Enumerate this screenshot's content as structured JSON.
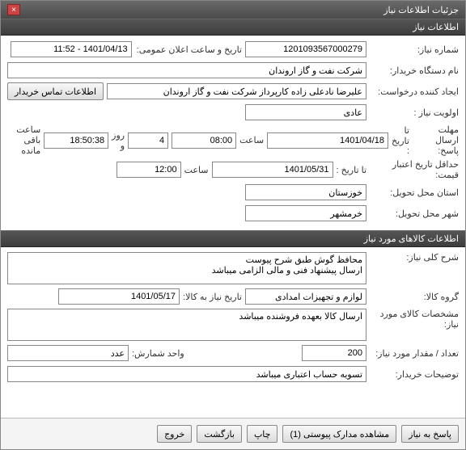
{
  "window": {
    "title": "جزئیات اطلاعات نیاز"
  },
  "section1": {
    "title": "اطلاعات نیاز"
  },
  "need": {
    "number_label": "شماره نیاز:",
    "number": "1201093567000279",
    "announce_label": "تاریخ و ساعت اعلان عمومی:",
    "announce": "1401/04/13 - 11:52",
    "buyer_label": "نام دستگاه خریدار:",
    "buyer": "شرکت نفت و گاز اروندان",
    "creator_label": "ایجاد کننده درخواست:",
    "creator": "علیرضا نادعلی زاده کارپرداز شرکت نفت و گاز اروندان",
    "contact_btn": "اطلاعات تماس خریدار",
    "priority_label": "اولویت نیاز :",
    "priority": "عادی",
    "deadline_label": "مهلت ارسال پاسخ:",
    "deadline_to": "تا تاریخ :",
    "deadline_date": "1401/04/18",
    "time_label": "ساعت",
    "deadline_time": "08:00",
    "days": "4",
    "days_and": "روز و",
    "countdown": "18:50:38",
    "remaining": "ساعت باقی مانده",
    "validity_label": "حداقل تاریخ اعتبار قیمت:",
    "validity_to": "تا تاریخ :",
    "validity_date": "1401/05/31",
    "validity_time": "12:00",
    "province_label": "استان محل تحویل:",
    "province": "خوزستان",
    "city_label": "شهر محل تحویل:",
    "city": "خرمشهر"
  },
  "section2": {
    "title": "اطلاعات کالاهای مورد نیاز"
  },
  "goods": {
    "desc_label": "شرح کلی نیاز:",
    "desc": "محافظ گوش طبق شرح پیوست\nارسال پیشنهاد فنی و مالی الزامی میباشد",
    "group_label": "گروه کالا:",
    "group": "لوازم و تجهیزات امدادی",
    "need_date_label": "تاریخ نیاز به کالا:",
    "need_date": "1401/05/17",
    "spec_label": "مشخصات کالای مورد نیاز:",
    "spec": "ارسال کالا بعهده فروشنده میباشد",
    "qty_label": "تعداد / مقدار مورد نیاز:",
    "qty": "200",
    "unit_label": "واحد شمارش:",
    "unit": "عدد",
    "buyer_note_label": "توضیحات خریدار:",
    "buyer_note": "تسویه حساب اعتباری میباشد"
  },
  "footer": {
    "reply": "پاسخ به نیاز",
    "attachments": "مشاهده مدارک پیوستی (1)",
    "print": "چاپ",
    "back": "بازگشت",
    "exit": "خروج"
  }
}
